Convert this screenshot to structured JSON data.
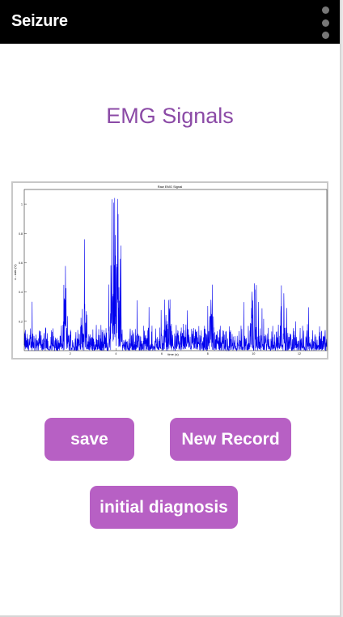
{
  "app_bar": {
    "title": "Seizure",
    "menu_icon": "overflow-dots-icon"
  },
  "main": {
    "heading": "EMG Signals",
    "plot": {
      "title": "Raw EMG Signal",
      "xlabel": "time (s)",
      "ylabel": "x - axis (V)",
      "ylim": [
        0,
        1.1
      ],
      "xlim": [
        0,
        13.2
      ],
      "yticks": [
        "0.2",
        "0.4",
        "0.6",
        "0.8",
        "1"
      ],
      "xticks": [
        "2",
        "4",
        "6",
        "8",
        "10",
        "12"
      ],
      "line_color": "#0000ee"
    },
    "buttons": {
      "save": "save",
      "new_record": "New Record",
      "initial_diagnosis": "initial diagnosis"
    }
  },
  "colors": {
    "accent": "#b760c4",
    "heading": "#8b4aa6",
    "app_bar": "#000000"
  }
}
